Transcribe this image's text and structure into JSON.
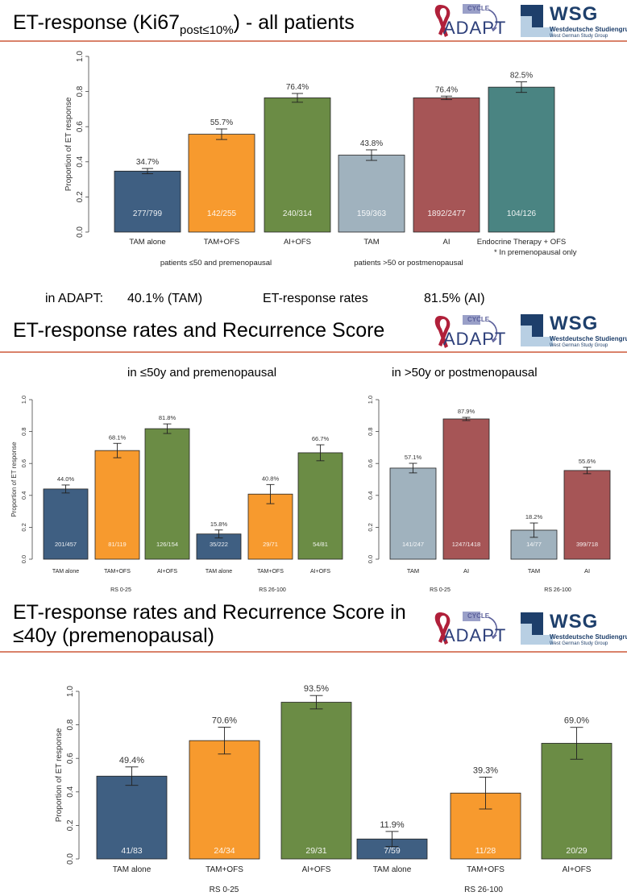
{
  "section1": {
    "title_main": "ET-response (Ki67",
    "title_sub": "post≤10%",
    "title_tail": ") - all patients",
    "in_adapt_label": "in ADAPT:",
    "tam_rate": "40.1% (TAM)",
    "rates_label": "ET-response rates",
    "ai_rate": "81.5% (AI)"
  },
  "section2": {
    "title": "ET-response rates and Recurrence Score",
    "left_head": "in ≤50y and premenopausal",
    "right_head": "in >50y or postmenopausal"
  },
  "section3": {
    "title_line1": "ET-response rates and Recurrence Score in",
    "title_line2": "≤40y (premenopausal)"
  },
  "logos": {
    "adapt": "ADAPT",
    "cycle": "CYCLE",
    "wsg": "WSG",
    "wsg_sub1": "Westdeutsche Studiengruppe",
    "wsg_sub2": "West German Study Group"
  },
  "colors": {
    "navy": "#3f5f82",
    "orange": "#f79a2e",
    "green": "#6b8c45",
    "grey": "#a0b2be",
    "red": "#a65556",
    "teal": "#4a8482",
    "rule": "#d9826a"
  },
  "chart_data": [
    {
      "type": "bar",
      "ylabel": "Proportion of ET response",
      "ylim": [
        0,
        1.0
      ],
      "yticks": [
        "0.0",
        "0.2",
        "0.4",
        "0.6",
        "0.8",
        "1.0"
      ],
      "categories": [
        "TAM alone",
        "TAM+OFS",
        "AI+OFS",
        "TAM",
        "AI",
        "Endocrine Therapy + OFS"
      ],
      "values": [
        0.347,
        0.557,
        0.764,
        0.438,
        0.764,
        0.825
      ],
      "errors": [
        0.015,
        0.03,
        0.025,
        0.03,
        0.01,
        0.03
      ],
      "value_labels": [
        "34.7%",
        "55.7%",
        "76.4%",
        "43.8%",
        "76.4%",
        "82.5%"
      ],
      "count_labels": [
        "277/799",
        "142/255",
        "240/314",
        "159/363",
        "1892/2477",
        "104/126"
      ],
      "colors": [
        "#3f5f82",
        "#f79a2e",
        "#6b8c45",
        "#a0b2be",
        "#a65556",
        "#4a8482"
      ],
      "groups": [
        "patients ≤50 and premenopausal",
        "patients >50 or postmenopausal"
      ],
      "footnote": "* In premenopausal only"
    },
    {
      "type": "bar",
      "ylabel": "Proportion of ET response",
      "ylim": [
        0,
        1.0
      ],
      "yticks": [
        "0.0",
        "0.2",
        "0.4",
        "0.6",
        "0.8",
        "1.0"
      ],
      "categories": [
        "TAM alone",
        "TAM+OFS",
        "AI+OFS",
        "TAM alone",
        "TAM+OFS",
        "AI+OFS"
      ],
      "values": [
        0.44,
        0.681,
        0.818,
        0.158,
        0.408,
        0.667
      ],
      "errors": [
        0.025,
        0.045,
        0.03,
        0.025,
        0.06,
        0.05
      ],
      "value_labels": [
        "44.0%",
        "68.1%",
        "81.8%",
        "15.8%",
        "40.8%",
        "66.7%"
      ],
      "count_labels": [
        "201/457",
        "81/119",
        "126/154",
        "35/222",
        "29/71",
        "54/81"
      ],
      "colors": [
        "#3f5f82",
        "#f79a2e",
        "#6b8c45",
        "#3f5f82",
        "#f79a2e",
        "#6b8c45"
      ],
      "groups": [
        "RS 0-25",
        "RS 26-100"
      ]
    },
    {
      "type": "bar",
      "ylabel": "",
      "ylim": [
        0,
        1.0
      ],
      "yticks": [
        "0.0",
        "0.2",
        "0.4",
        "0.6",
        "0.8",
        "1.0"
      ],
      "categories": [
        "TAM",
        "AI",
        "TAM",
        "AI"
      ],
      "values": [
        0.571,
        0.879,
        0.182,
        0.556
      ],
      "errors": [
        0.03,
        0.01,
        0.045,
        0.02
      ],
      "value_labels": [
        "57.1%",
        "87.9%",
        "18.2%",
        "55.6%"
      ],
      "count_labels": [
        "141/247",
        "1247/1418",
        "14/77",
        "399/718"
      ],
      "colors": [
        "#a0b2be",
        "#a65556",
        "#a0b2be",
        "#a65556"
      ],
      "groups": [
        "RS 0-25",
        "RS 26-100"
      ]
    },
    {
      "type": "bar",
      "ylabel": "Proportion of ET response",
      "ylim": [
        0,
        1.0
      ],
      "yticks": [
        "0.0",
        "0.2",
        "0.4",
        "0.6",
        "0.8",
        "1.0"
      ],
      "categories": [
        "TAM alone",
        "TAM+OFS",
        "AI+OFS",
        "TAM alone",
        "TAM+OFS",
        "AI+OFS"
      ],
      "values": [
        0.494,
        0.706,
        0.935,
        0.119,
        0.393,
        0.69
      ],
      "errors": [
        0.055,
        0.08,
        0.04,
        0.045,
        0.095,
        0.095
      ],
      "value_labels": [
        "49.4%",
        "70.6%",
        "93.5%",
        "11.9%",
        "39.3%",
        "69.0%"
      ],
      "count_labels": [
        "41/83",
        "24/34",
        "29/31",
        "7/59",
        "11/28",
        "20/29"
      ],
      "colors": [
        "#3f5f82",
        "#f79a2e",
        "#6b8c45",
        "#3f5f82",
        "#f79a2e",
        "#6b8c45"
      ],
      "groups": [
        "RS 0-25",
        "RS 26-100"
      ]
    }
  ]
}
